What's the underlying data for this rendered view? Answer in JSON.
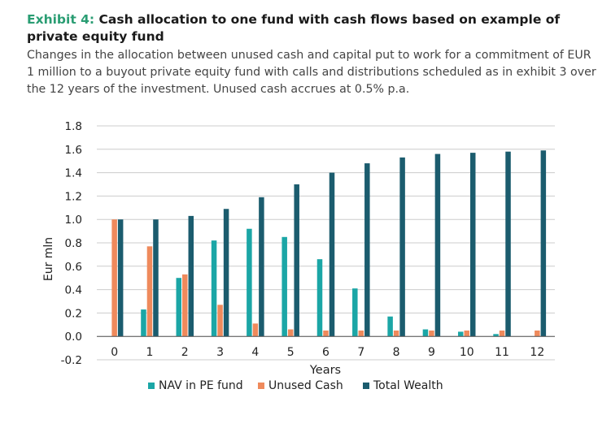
{
  "header": {
    "exhibit_label": "Exhibit 4:",
    "title": "Cash allocation to one fund with cash flows based on example of private equity fund",
    "subtitle": "Changes in the allocation between unused cash and capital put to work for a commitment of EUR 1 million to a buyout private equity fund with calls and distributions scheduled as in exhibit 3 over the 12 years of the investment. Unused cash accrues at 0.5% p.a."
  },
  "chart_data": {
    "type": "bar",
    "title": "",
    "xlabel": "Years",
    "ylabel": "Eur mln",
    "ylim": [
      -0.2,
      1.8
    ],
    "yticks": [
      "1.8",
      "1.6",
      "1.4",
      "1.2",
      "1.0",
      "0.8",
      "0.6",
      "0.4",
      "0.2",
      "0.0",
      "-0.2"
    ],
    "grid": true,
    "legend_position": "bottom",
    "categories": [
      "0",
      "1",
      "2",
      "3",
      "4",
      "5",
      "6",
      "7",
      "8",
      "9",
      "10",
      "11",
      "12"
    ],
    "series": [
      {
        "name": "NAV in PE fund",
        "color": "#1ba6a6",
        "values": [
          0.0,
          0.23,
          0.5,
          0.82,
          0.92,
          0.85,
          0.66,
          0.41,
          0.17,
          0.06,
          0.04,
          0.02,
          0.0
        ]
      },
      {
        "name": "Unused Cash",
        "color": "#ef8a5c",
        "values": [
          1.0,
          0.77,
          0.53,
          0.27,
          0.11,
          0.06,
          0.05,
          0.05,
          0.05,
          0.05,
          0.05,
          0.05,
          0.05
        ]
      },
      {
        "name": "Total Wealth",
        "color": "#1b5c6e",
        "values": [
          1.0,
          1.0,
          1.03,
          1.09,
          1.19,
          1.3,
          1.4,
          1.48,
          1.53,
          1.56,
          1.57,
          1.58,
          1.59
        ]
      }
    ]
  }
}
